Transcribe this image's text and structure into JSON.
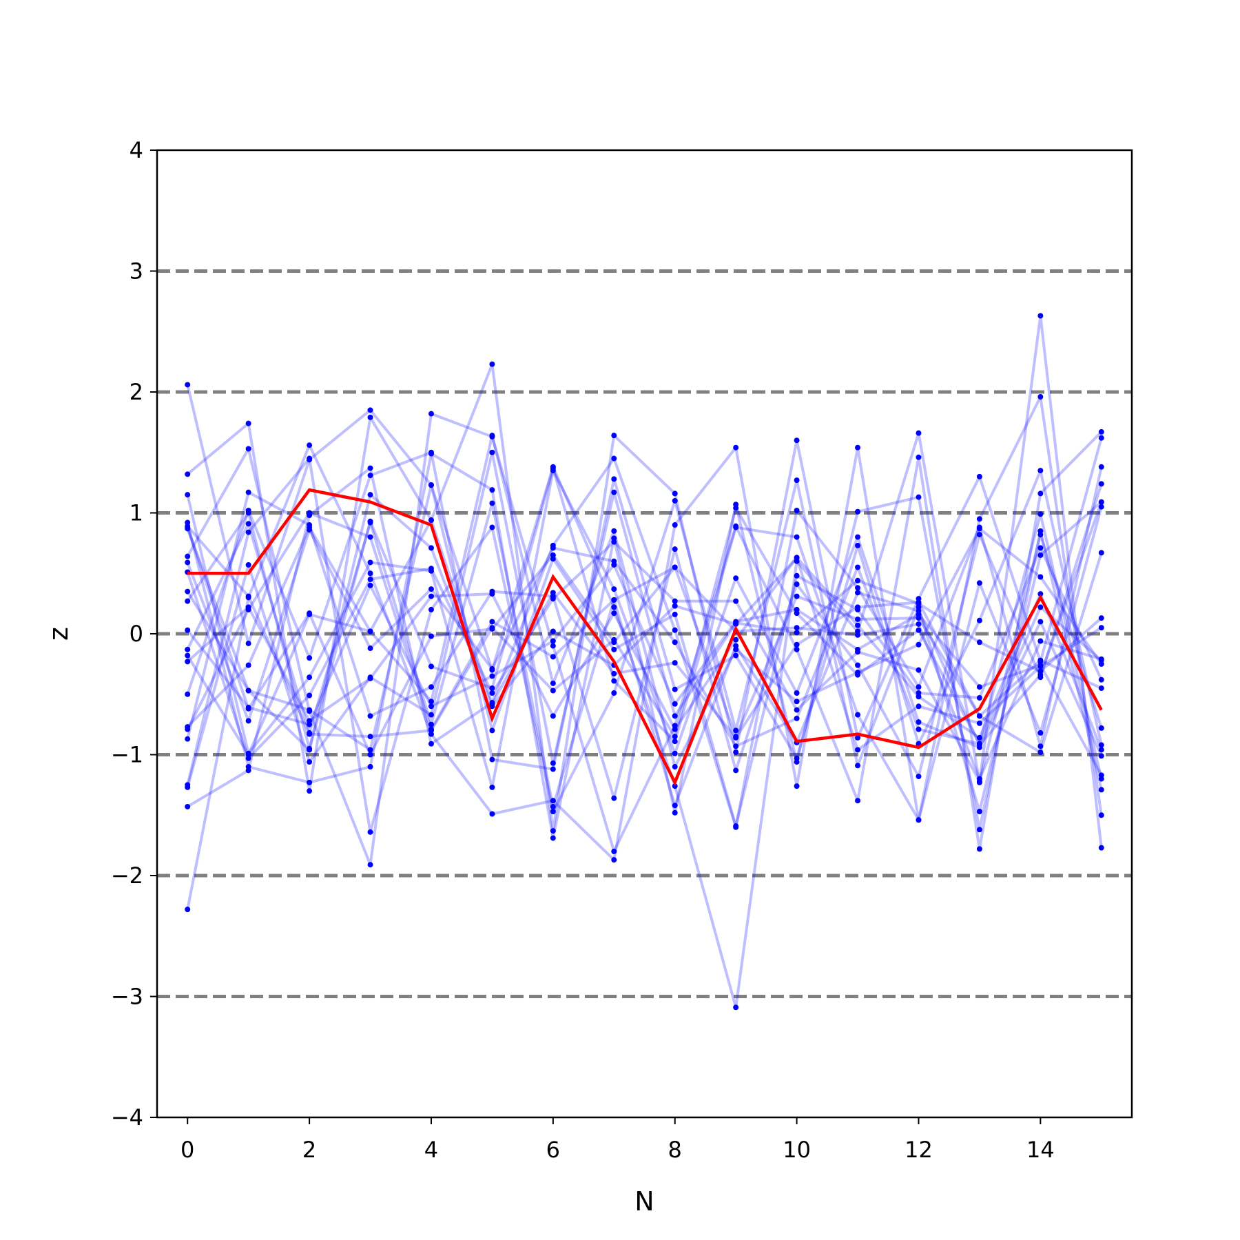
{
  "chart_data": {
    "type": "line",
    "xlabel": "N",
    "ylabel": "z",
    "xlim": [
      -0.5,
      15.5
    ],
    "ylim": [
      -4,
      4
    ],
    "x_ticks": [
      0,
      2,
      4,
      6,
      8,
      10,
      12,
      14
    ],
    "y_ticks": [
      -4,
      -3,
      -2,
      -1,
      0,
      1,
      2,
      3,
      4
    ],
    "reference_lines": [
      -3,
      -2,
      -1,
      0,
      1,
      2,
      3
    ],
    "reference_color": "#808080",
    "sample_color": "#0000ff",
    "highlight_color": "#ff0000",
    "x": [
      0,
      1,
      2,
      3,
      4,
      5,
      6,
      7,
      8,
      9,
      10,
      11,
      12,
      13,
      14,
      15
    ],
    "highlight": [
      0.5,
      0.5,
      1.19,
      1.09,
      0.9,
      -0.7,
      0.47,
      -0.23,
      -1.23,
      0.04,
      -0.89,
      -0.83,
      -0.94,
      -0.62,
      0.3,
      -0.63
    ],
    "samples": [
      [
        2.06,
        -0.08,
        1.44,
        1.85,
        1.23,
        -0.3,
        1.38,
        0.22,
        -1.26,
        -3.09,
        0.6,
        0.02,
        1.66,
        -1.23,
        2.63,
        -1.77
      ],
      [
        1.32,
        1.74,
        -1.3,
        1.79,
        0.94,
        2.23,
        -1.63,
        1.64,
        1.16,
        -0.98,
        1.6,
        -0.86,
        0.29,
        1.3,
        -0.23,
        1.62
      ],
      [
        -2.28,
        0.3,
        1.56,
        0.5,
        -0.83,
        -1.49,
        -1.38,
        -1.87,
        0.9,
        1.54,
        -1.26,
        1.54,
        -1.54,
        0.95,
        1.96,
        -1.5
      ],
      [
        0.64,
        1.53,
        -0.64,
        -1.91,
        1.82,
        1.63,
        -0.1,
        -1.8,
        -0.76,
        0.89,
        -0.13,
        -1.38,
        1.46,
        -1.78,
        1.16,
        1.67
      ],
      [
        -1.43,
        -1.13,
        0.98,
        1.37,
        -0.91,
        -0.57,
        0.73,
        1.45,
        0.03,
        -1.6,
        1.02,
        0.38,
        -0.44,
        0.88,
        -0.93,
        1.38
      ],
      [
        0.92,
        -1.1,
        -1.23,
        -1.1,
        1.49,
        1.19,
        -1.69,
        0.79,
        -1.48,
        1.07,
        -1.06,
        1.01,
        1.13,
        -1.62,
        0.85,
        -1.29
      ],
      [
        -0.87,
        1.17,
        0.9,
        -0.68,
        -0.44,
        0.35,
        0.31,
        -1.36,
        0.7,
        -1.13,
        0.41,
        -0.26,
        -1.18,
        0.82,
        -0.36,
        1.24
      ],
      [
        1.15,
        -0.99,
        -0.36,
        0.59,
        0.52,
        -1.27,
        1.35,
        0.37,
        -0.99,
        0.46,
        -0.49,
        0.8,
        -0.73,
        -0.94,
        0.1,
        -1.01
      ],
      [
        -1.25,
        0.84,
        1.45,
        -1.64,
        0.2,
        0.88,
        -1.47,
        -0.49,
        1.1,
        -0.8,
        1.27,
        -1.09,
        0.22,
        -1.47,
        0.65,
        1.09
      ],
      [
        0.35,
        -0.47,
        -0.96,
        0.93,
        -0.27,
        -0.45,
        1.37,
        -0.39,
        -0.89,
        0.88,
        0.8,
        -0.67,
        -1.54,
        0.42,
        -0.82,
        1.05
      ],
      [
        -0.5,
        1.02,
        -0.2,
        1.31,
        1.5,
        -1.04,
        -1.12,
        1.28,
        -0.46,
        -0.18,
        -1.03,
        0.73,
        -0.91,
        0.11,
        1.35,
        -0.92
      ],
      [
        0.88,
        -0.62,
        0.17,
        -1.0,
        -0.02,
        0.04,
        0.65,
        -0.07,
        0.55,
        -0.85,
        0.31,
        0.12,
        0.13,
        -0.68,
        -0.98,
        0.67
      ],
      [
        -0.77,
        -0.26,
        0.88,
        0.02,
        -0.56,
        1.64,
        -0.41,
        0.85,
        -1.1,
        -0.13,
        -0.56,
        -0.32,
        -0.09,
        0.87,
        0.47,
        -0.25
      ],
      [
        0.27,
        1.0,
        -0.95,
        1.15,
        0.71,
        -0.6,
        0.02,
        -0.26,
        0.23,
        0.08,
        0.63,
        -0.96,
        -0.6,
        -0.74,
        -0.27,
        0.05
      ],
      [
        -1.27,
        0.57,
        -1.06,
        -0.36,
        -0.67,
        1.5,
        -1.07,
        1.17,
        -0.68,
        0.09,
        0.01,
        0.44,
        0.25,
        -0.07,
        -0.31,
        0.13
      ],
      [
        0.59,
        -0.72,
        0.86,
        -0.12,
        0.37,
        -0.29,
        0.71,
        0.6,
        -0.07,
        -0.93,
        -0.7,
        0.55,
        -0.79,
        -0.91,
        0.99,
        -1.2
      ],
      [
        -0.13,
        0.91,
        -0.82,
        0.92,
        -0.75,
        1.08,
        -1.43,
        0.28,
        0.55,
        0.02,
        0.05,
        -0.01,
        0.08,
        -1.2,
        -0.06,
        -0.21
      ],
      [
        0.87,
        -0.47,
        -0.63,
        -0.96,
        1.23,
        -0.8,
        0.62,
        -0.13,
        0.16,
        -1.59,
        0.48,
        0.2,
        -0.49,
        -0.53,
        0.71,
        -0.38
      ],
      [
        -0.79,
        0.2,
        1.0,
        0.8,
        -0.79,
        0.1,
        -0.19,
        0.28,
        -1.42,
        -0.1,
        -0.9,
        0.34,
        0.19,
        -0.92,
        -0.34,
        1.09
      ],
      [
        0.51,
        -1.03,
        -0.51,
        0.45,
        0.54,
        -0.49,
        0.29,
        0.76,
        0.27,
        0.27,
        -0.63,
        -0.15,
        -0.3,
        -1.22,
        0.82,
        -0.78
      ],
      [
        -0.23,
        0.22,
        -0.72,
        -0.37,
        0.31,
        0.33,
        -0.68,
        0.17,
        -0.79,
        -0.05,
        0.63,
        0.07,
        -0.52,
        -0.86,
        0.33,
        -0.96
      ],
      [
        0.03,
        -0.61,
        -0.75,
        0.4,
        -0.6,
        -0.35,
        -0.06,
        0.57,
        -0.58,
        0.1,
        0.2,
        -0.13,
        0.16,
        -0.44,
        -0.26,
        -1.17
      ],
      [
        0.89,
        0.31,
        -0.83,
        -0.85,
        -0.8,
        0.05,
        -0.47,
        -0.05,
        -0.85,
        1.04,
        0.17,
        -0.34,
        0.03,
        -0.91,
        0.22,
        -0.22
      ],
      [
        -0.18,
        -1.0,
        0.16,
        0.02,
        0.94,
        -0.58,
        0.34,
        -0.33,
        -0.24,
        -0.86,
        -0.09,
        0.22,
        0.26,
        -0.68,
        -0.22,
        -0.45
      ]
    ]
  }
}
